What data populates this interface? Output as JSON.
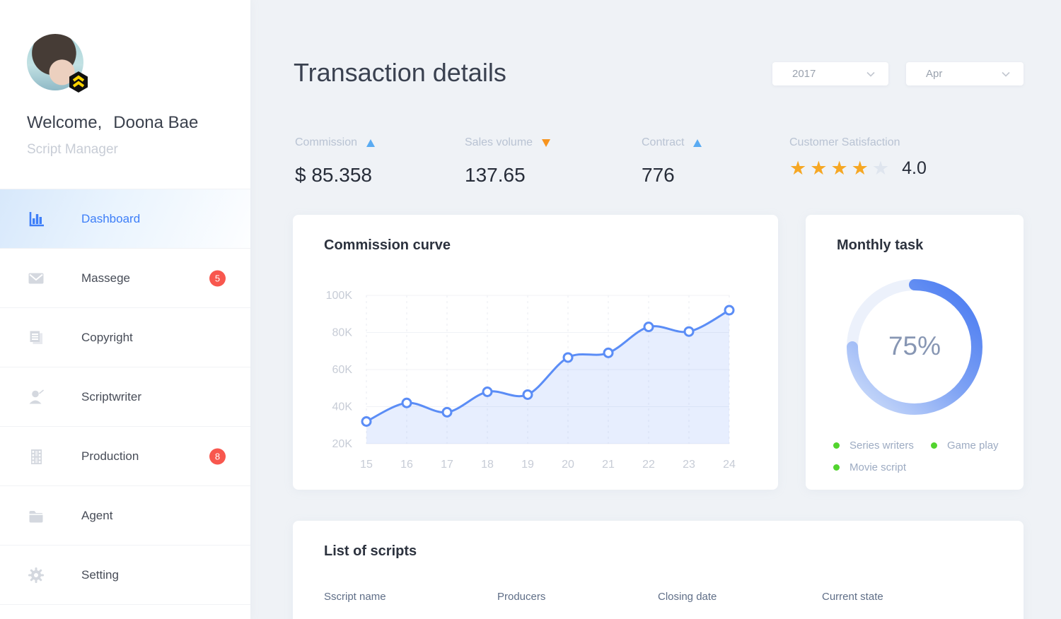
{
  "sidebar": {
    "welcome": "Welcome,",
    "user_name": "Doona Bae",
    "role": "Script Manager",
    "items": [
      {
        "label": "Dashboard",
        "icon": "bar-chart-icon",
        "active": true
      },
      {
        "label": "Massege",
        "icon": "mail-icon",
        "badge": "5"
      },
      {
        "label": "Copyright",
        "icon": "document-icon"
      },
      {
        "label": "Scriptwriter",
        "icon": "person-icon"
      },
      {
        "label": "Production",
        "icon": "film-icon",
        "badge": "8"
      },
      {
        "label": "Agent",
        "icon": "folder-icon"
      },
      {
        "label": "Setting",
        "icon": "gear-icon"
      }
    ]
  },
  "header": {
    "title": "Transaction details",
    "year_select": "2017",
    "month_select": "Apr"
  },
  "stats": [
    {
      "label": "Commission",
      "trend": "up",
      "value": "$ 85.358"
    },
    {
      "label": "Sales volume",
      "trend": "down",
      "value": "137.65"
    },
    {
      "label": "Contract",
      "trend": "up",
      "value": "776"
    },
    {
      "label": "Customer Satisfaction",
      "rating": 4,
      "rating_max": 5,
      "rating_text": "4.0"
    }
  ],
  "chart_data": [
    {
      "type": "line",
      "title": "Commission curve",
      "x": [
        15,
        16,
        17,
        18,
        19,
        20,
        21,
        22,
        23,
        24
      ],
      "values": [
        32,
        42,
        37,
        48,
        46.5,
        66.5,
        69,
        83,
        80.5,
        92
      ],
      "y_ticks": [
        "20K",
        "40K",
        "60K",
        "80K",
        "100K"
      ],
      "ylim": [
        20,
        100
      ],
      "grid": true,
      "area": true,
      "legend_position": "none"
    },
    {
      "type": "donut",
      "title": "Monthly task",
      "percent": 75,
      "percent_label": "75%",
      "legend": [
        "Series writers",
        "Game play",
        "Movie script"
      ]
    }
  ],
  "scripts_section": {
    "title": "List of scripts",
    "columns": [
      "Sscript name",
      "Producers",
      "Closing date",
      "Current state"
    ]
  },
  "colors": {
    "accent_blue": "#3d7ef8",
    "badge_red": "#f8574e",
    "trend_up_blue": "#5aabf2",
    "trend_down_orange": "#f7941e",
    "star_orange": "#f6a723",
    "star_empty": "#dfe5ee",
    "line_blue": "#5b8df6",
    "area_fill": "rgba(91,141,246,0.15)",
    "grid_h": "#f0f2f6",
    "grid_v": "#e9ebf1",
    "axis_text": "#c7ccd6",
    "donut_start": "#4a7bf1",
    "donut_mid": "#7fa3f4",
    "donut_end": "#cfdefa",
    "donut_track": "#ecf1fb",
    "legend_green": "#52d42e"
  }
}
